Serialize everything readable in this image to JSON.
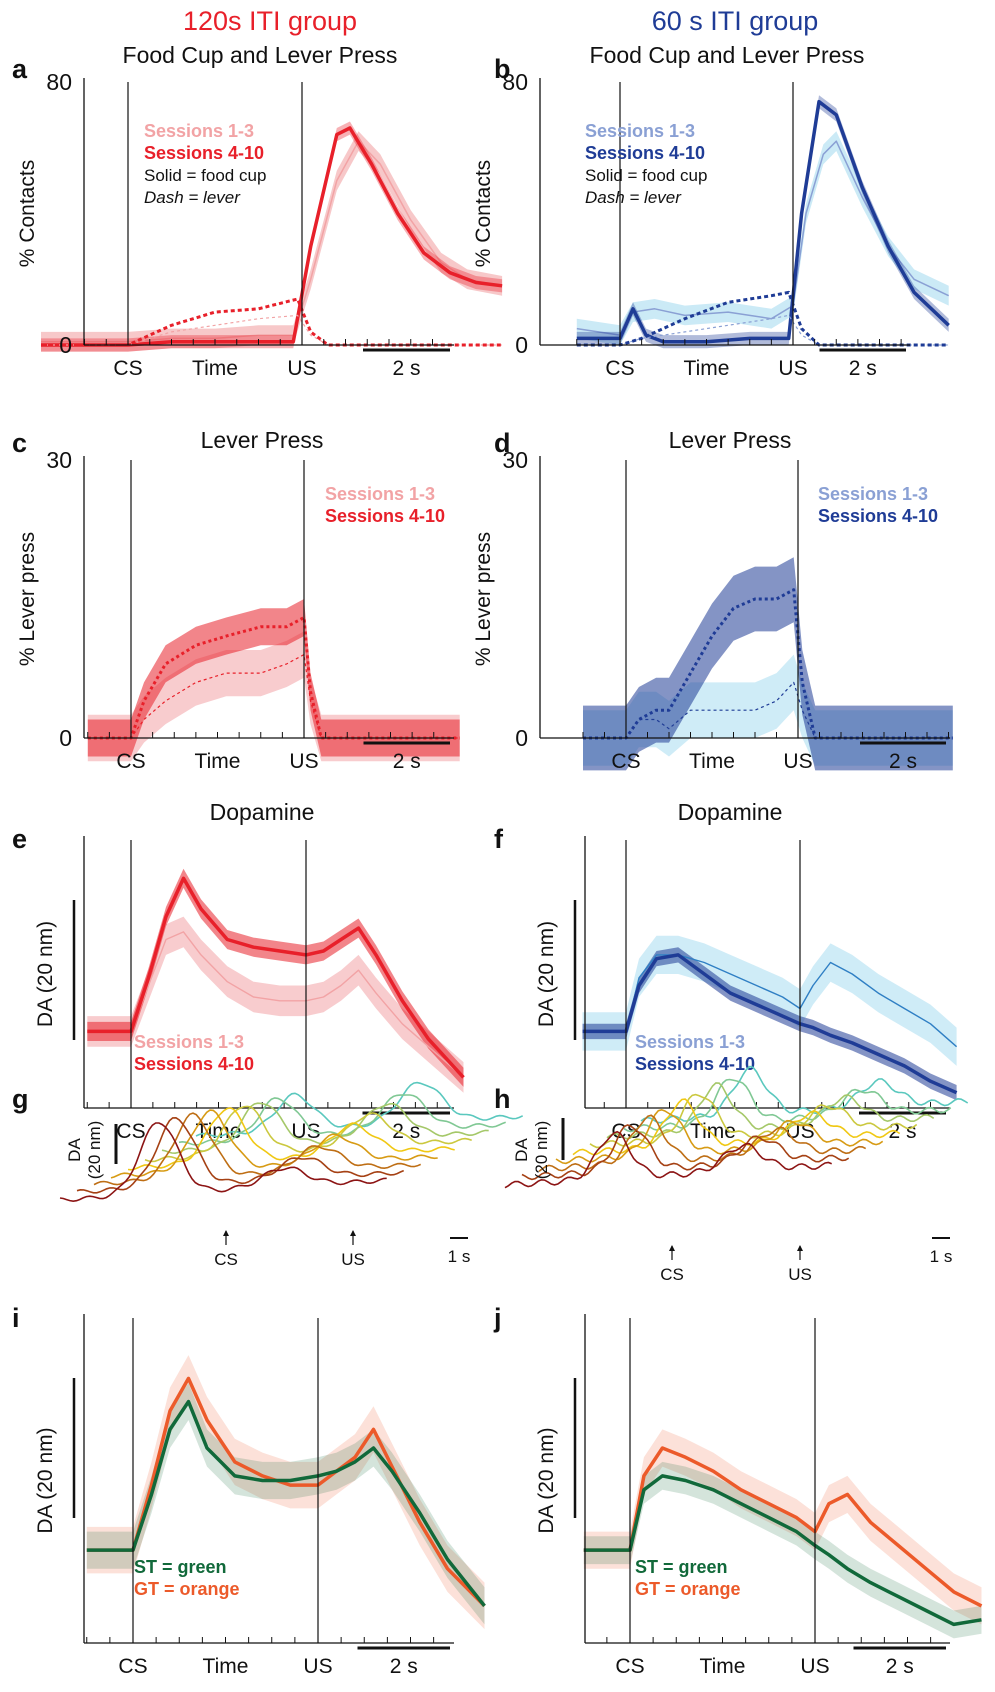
{
  "groups": {
    "left": {
      "label": "120s ITI group",
      "color": "#e8202a"
    },
    "right": {
      "label": "60 s ITI group",
      "color": "#1f3c96"
    }
  },
  "colors": {
    "red_early": "#f2a3a5",
    "red_late": "#e8202a",
    "blue_early": "#8aa0d4",
    "blue_late": "#1f3c96",
    "blue_early_band": "#a8dcf0",
    "st_green": "#11693a",
    "gt_orange": "#ec5a2a"
  },
  "x_axis": {
    "cs": "CS",
    "time": "Time",
    "us": "US"
  },
  "chart_data": [
    {
      "id": "a",
      "type": "line",
      "title": "Food Cup and Lever Press",
      "ylabel": "% Contacts",
      "yticks": [
        "0",
        "80"
      ],
      "ylim": [
        0,
        80
      ],
      "scalebar": "2 s",
      "xlim": [
        -2,
        8.6
      ],
      "cs_time": 0,
      "us_time": 4,
      "legend": [
        "Sessions 1-3",
        "Sessions 4-10",
        "Solid = food cup",
        "Dash = lever"
      ],
      "series": [
        {
          "name": "Sessions 1-3",
          "kind": "food cup",
          "x": [
            -2,
            -1,
            0,
            1,
            2,
            3,
            3.8,
            4.2,
            4.8,
            5.3,
            5.8,
            6.5,
            7.2,
            7.8,
            8.6
          ],
          "values": [
            1,
            1,
            1,
            2,
            2,
            3,
            3,
            20,
            50,
            62,
            55,
            38,
            25,
            20,
            18
          ]
        },
        {
          "name": "Sessions 4-10",
          "kind": "food cup",
          "x": [
            -2,
            -1,
            0,
            1,
            2,
            3,
            3.8,
            4.2,
            4.8,
            5.1,
            5.6,
            6.2,
            6.8,
            7.4,
            8,
            8.6
          ],
          "values": [
            0,
            0,
            0,
            1,
            1,
            1,
            1,
            30,
            64,
            66,
            55,
            40,
            28,
            22,
            19,
            18
          ]
        },
        {
          "name": "Sessions 1-3",
          "kind": "lever",
          "x": [
            -2,
            -1,
            0,
            0.5,
            1,
            2,
            3,
            3.9,
            4.2,
            4.6,
            8.6
          ],
          "values": [
            0,
            0,
            0,
            2,
            4,
            6,
            8,
            9,
            3,
            0,
            0
          ]
        },
        {
          "name": "Sessions 4-10",
          "kind": "lever",
          "x": [
            -2,
            -1,
            0,
            0.5,
            1,
            2,
            3,
            3.9,
            4.2,
            4.6,
            8.6
          ],
          "values": [
            0,
            0,
            0,
            3,
            6,
            10,
            11,
            14,
            4,
            0,
            0
          ]
        }
      ]
    },
    {
      "id": "b",
      "type": "line",
      "title": "Food Cup and Lever Press",
      "ylabel": "% Contacts",
      "yticks": [
        "0",
        "80"
      ],
      "ylim": [
        0,
        80
      ],
      "scalebar": "2 s",
      "xlim": [
        -1,
        7.6
      ],
      "cs_time": 0,
      "us_time": 4,
      "legend": [
        "Sessions 1-3",
        "Sessions 4-10",
        "Solid = food cup",
        "Dash = lever"
      ],
      "series": [
        {
          "name": "Sessions 1-3",
          "kind": "food cup",
          "x": [
            -1,
            -0.5,
            0,
            0.3,
            0.8,
            1.5,
            2.5,
            3.5,
            4,
            4.3,
            4.7,
            5,
            5.6,
            6.2,
            6.8,
            7.6
          ],
          "values": [
            5,
            4,
            3,
            10,
            11,
            9,
            10,
            8,
            12,
            40,
            58,
            62,
            45,
            30,
            20,
            15
          ]
        },
        {
          "name": "Sessions 4-10",
          "kind": "food cup",
          "x": [
            -1,
            -0.5,
            0,
            0.3,
            0.6,
            1,
            2,
            3,
            3.9,
            4.2,
            4.6,
            5,
            5.6,
            6.2,
            6.8,
            7.6
          ],
          "values": [
            2,
            2,
            2,
            11,
            3,
            1,
            1,
            2,
            2,
            40,
            74,
            70,
            48,
            30,
            16,
            6
          ]
        },
        {
          "name": "Sessions 1-3",
          "kind": "lever",
          "x": [
            -1,
            0,
            0.5,
            1.5,
            2.5,
            3.5,
            3.9,
            4.2,
            4.6,
            7.6
          ],
          "values": [
            0,
            0,
            2,
            4,
            6,
            8,
            9,
            3,
            0,
            0
          ]
        },
        {
          "name": "Sessions 4-10",
          "kind": "lever",
          "x": [
            -1,
            0,
            0.5,
            1.5,
            2.5,
            3.5,
            3.9,
            4.2,
            4.6,
            7.6
          ],
          "values": [
            0,
            0,
            2,
            8,
            13,
            15,
            16,
            5,
            0,
            0
          ]
        }
      ]
    },
    {
      "id": "c",
      "type": "area",
      "title": "Lever Press",
      "ylabel": "% Lever press",
      "yticks": [
        "0",
        "30"
      ],
      "ylim": [
        0,
        30
      ],
      "scalebar": "2 s",
      "xlim": [
        -1,
        7.6
      ],
      "cs_time": 0,
      "us_time": 4,
      "legend": [
        "Sessions 1-3",
        "Sessions 4-10"
      ],
      "series": [
        {
          "name": "Sessions 1-3",
          "x": [
            -1,
            0,
            0.3,
            0.8,
            1.5,
            2.2,
            3,
            3.6,
            4,
            4.15,
            4.4,
            7.6
          ],
          "values": [
            0,
            0,
            2,
            4,
            6,
            7,
            7,
            8,
            9,
            4,
            0,
            0
          ],
          "err": 2.5
        },
        {
          "name": "Sessions 4-10",
          "x": [
            -1,
            0,
            0.3,
            0.8,
            1.5,
            2.2,
            3,
            3.6,
            4,
            4.15,
            4.4,
            7.6
          ],
          "values": [
            0,
            0,
            4,
            8,
            10,
            11,
            12,
            12,
            13,
            5,
            0,
            0
          ],
          "err": 2
        }
      ]
    },
    {
      "id": "d",
      "type": "area",
      "title": "Lever Press",
      "ylabel": "% Lever press",
      "yticks": [
        "0",
        "30"
      ],
      "ylim": [
        0,
        30
      ],
      "scalebar": "2 s",
      "xlim": [
        -1,
        7.6
      ],
      "cs_time": 0,
      "us_time": 4,
      "legend": [
        "Sessions 1-3",
        "Sessions 4-10"
      ],
      "series": [
        {
          "name": "Sessions 1-3",
          "x": [
            -1,
            0,
            0.3,
            0.7,
            1,
            1.5,
            2,
            2.5,
            3,
            3.5,
            3.9,
            4.1,
            4.4,
            7.6
          ],
          "values": [
            0,
            0,
            2,
            2,
            1,
            3,
            3,
            3,
            3,
            4,
            6,
            3,
            0,
            0
          ],
          "err": 3
        },
        {
          "name": "Sessions 4-10",
          "x": [
            -1,
            0,
            0.3,
            0.7,
            1,
            1.5,
            2,
            2.5,
            3,
            3.5,
            3.9,
            4.1,
            4.4,
            7.6
          ],
          "values": [
            0,
            0,
            2,
            3,
            3,
            7,
            11,
            14,
            15,
            15,
            16,
            6,
            0,
            0
          ],
          "err": 3.5
        }
      ]
    },
    {
      "id": "e",
      "type": "line",
      "title": "Dopamine",
      "ylabel": "DA (20 nm)",
      "scalebar": "2 s",
      "ylim": [
        -20,
        50
      ],
      "xlim": [
        -1,
        7.6
      ],
      "cs_time": 0,
      "us_time": 4,
      "legend": [
        "Sessions 1-3",
        "Sessions 4-10"
      ],
      "series": [
        {
          "name": "Sessions 1-3",
          "x": [
            -1,
            -0.5,
            0,
            0.4,
            0.8,
            1.2,
            1.6,
            2.2,
            2.8,
            3.4,
            4,
            4.4,
            4.8,
            5.2,
            5.6,
            6.2,
            6.8,
            7.6
          ],
          "values": [
            0,
            0,
            0,
            12,
            24,
            26,
            20,
            13,
            9,
            8,
            8,
            9,
            12,
            16,
            10,
            2,
            -4,
            -12
          ],
          "err": 4
        },
        {
          "name": "Sessions 4-10",
          "x": [
            -1,
            -0.5,
            0,
            0.4,
            0.8,
            1.2,
            1.6,
            2.2,
            2.8,
            3.4,
            4,
            4.4,
            4.8,
            5.2,
            5.6,
            6.2,
            6.8,
            7.6
          ],
          "values": [
            0,
            0,
            0,
            14,
            30,
            40,
            32,
            24,
            22,
            21,
            20,
            21,
            24,
            27,
            20,
            8,
            -2,
            -12
          ],
          "err": 2.5
        }
      ]
    },
    {
      "id": "f",
      "type": "line",
      "title": "Dopamine",
      "ylabel": "DA (20 nm)",
      "scalebar": "2 s",
      "ylim": [
        -20,
        50
      ],
      "xlim": [
        -1,
        7.6
      ],
      "cs_time": 0,
      "us_time": 4,
      "legend": [
        "Sessions 1-3",
        "Sessions 4-10"
      ],
      "series": [
        {
          "name": "Sessions 1-3",
          "x": [
            -1,
            -0.5,
            0,
            0.3,
            0.7,
            1.2,
            1.8,
            2.4,
            3,
            3.6,
            4,
            4.3,
            4.7,
            5.2,
            5.8,
            6.4,
            7,
            7.6
          ],
          "values": [
            0,
            0,
            0,
            14,
            20,
            20,
            18,
            15,
            12,
            9,
            6,
            12,
            18,
            15,
            10,
            6,
            2,
            -4
          ],
          "err": 5
        },
        {
          "name": "Sessions 4-10",
          "x": [
            -1,
            -0.5,
            0,
            0.3,
            0.7,
            1.2,
            1.8,
            2.4,
            3,
            3.6,
            4,
            4.3,
            4.7,
            5.2,
            5.8,
            6.4,
            7,
            7.6
          ],
          "values": [
            0,
            0,
            0,
            12,
            19,
            20,
            15,
            10,
            7,
            4,
            2,
            1,
            -1,
            -3,
            -6,
            -9,
            -13,
            -16
          ],
          "err": 2
        }
      ]
    },
    {
      "id": "g",
      "type": "line",
      "ylabel": "DA (20 nm)",
      "scalebar": "1 s",
      "annotations": [
        "CS",
        "US"
      ],
      "n_traces": 9
    },
    {
      "id": "h",
      "type": "line",
      "ylabel": "DA (20 nm)",
      "scalebar": "1 s",
      "annotations": [
        "CS",
        "US"
      ],
      "n_traces": 9
    },
    {
      "id": "i",
      "type": "line",
      "ylabel": "DA (20 nm)",
      "scalebar": "2 s",
      "ylim": [
        -20,
        50
      ],
      "xlim": [
        -1,
        7.6
      ],
      "cs_time": 0,
      "us_time": 4,
      "legend": [
        "ST = green",
        "GT = orange"
      ],
      "series": [
        {
          "name": "ST = green",
          "x": [
            -1,
            -0.5,
            0,
            0.4,
            0.8,
            1.2,
            1.6,
            2.2,
            2.8,
            3.4,
            4,
            4.4,
            4.8,
            5.2,
            5.6,
            6.2,
            6.8,
            7.6
          ],
          "values": [
            0,
            0,
            0,
            12,
            26,
            32,
            22,
            16,
            15,
            15,
            16,
            17,
            19,
            22,
            17,
            8,
            -2,
            -12
          ],
          "err": 4
        },
        {
          "name": "GT = orange",
          "x": [
            -1,
            -0.5,
            0,
            0.4,
            0.8,
            1.2,
            1.6,
            2.2,
            2.8,
            3.4,
            4,
            4.4,
            4.8,
            5.2,
            5.6,
            6.2,
            6.8,
            7.6
          ],
          "values": [
            0,
            0,
            0,
            14,
            30,
            37,
            28,
            19,
            16,
            14,
            14,
            17,
            20,
            26,
            18,
            6,
            -4,
            -12
          ],
          "err": 5
        }
      ]
    },
    {
      "id": "j",
      "type": "line",
      "ylabel": "DA (20 nm)",
      "scalebar": "2 s",
      "ylim": [
        -20,
        50
      ],
      "xlim": [
        -1,
        7.6
      ],
      "cs_time": 0,
      "us_time": 4,
      "legend": [
        "ST = green",
        "GT = orange"
      ],
      "series": [
        {
          "name": "ST = green",
          "x": [
            -1,
            -0.5,
            0,
            0.3,
            0.7,
            1.2,
            1.8,
            2.4,
            3,
            3.6,
            4,
            4.3,
            4.7,
            5.2,
            5.8,
            6.4,
            7,
            7.6
          ],
          "values": [
            0,
            0,
            0,
            13,
            16,
            15,
            13,
            10,
            7,
            4,
            1,
            -1,
            -4,
            -7,
            -10,
            -13,
            -16,
            -15
          ],
          "err": 3
        },
        {
          "name": "GT = orange",
          "x": [
            -1,
            -0.5,
            0,
            0.3,
            0.7,
            1.2,
            1.8,
            2.4,
            3,
            3.6,
            4,
            4.3,
            4.7,
            5.2,
            5.8,
            6.4,
            7,
            7.6
          ],
          "values": [
            0,
            0,
            0,
            16,
            22,
            20,
            17,
            13,
            10,
            7,
            4,
            10,
            12,
            6,
            1,
            -4,
            -9,
            -12
          ],
          "err": 4
        }
      ]
    }
  ]
}
